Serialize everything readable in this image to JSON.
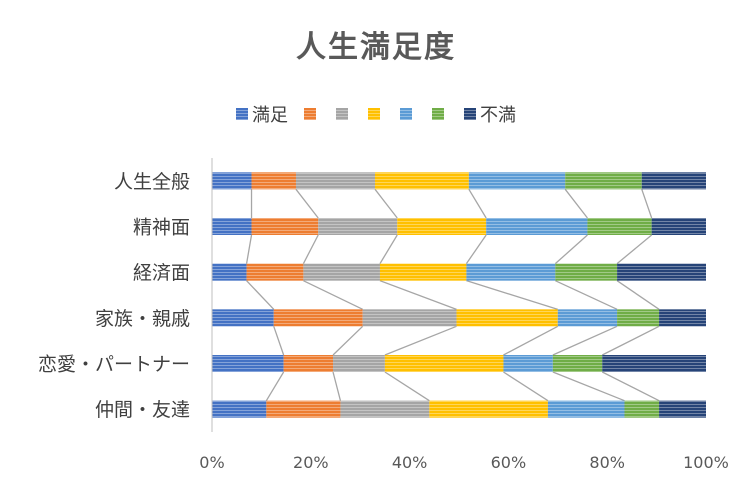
{
  "chart_data": {
    "type": "bar",
    "orientation": "horizontal",
    "stacked": "percent",
    "title": "人生満足度",
    "categories": [
      "人生全般",
      "精神面",
      "経済面",
      "家族・親戚",
      "恋愛・パートナー",
      "仲間・友達"
    ],
    "series": [
      {
        "name": "満足",
        "color": "#4472C4",
        "values": [
          8,
          8,
          7,
          12.5,
          14.5,
          11
        ]
      },
      {
        "name": "",
        "color": "#ED7D31",
        "values": [
          9,
          13.5,
          11.5,
          18,
          10,
          15
        ]
      },
      {
        "name": "",
        "color": "#A5A5A5",
        "values": [
          16,
          16,
          15.5,
          19,
          10.5,
          18
        ]
      },
      {
        "name": "",
        "color": "#FFC000",
        "values": [
          19,
          18,
          17.5,
          20.5,
          24,
          24
        ]
      },
      {
        "name": "",
        "color": "#5B9BD5",
        "values": [
          19.5,
          20.5,
          18,
          12,
          10,
          15.5
        ]
      },
      {
        "name": "",
        "color": "#70AD47",
        "values": [
          15.5,
          13,
          12.5,
          8.5,
          10,
          7
        ]
      },
      {
        "name": "不満",
        "color": "#264478",
        "values": [
          13,
          11,
          18,
          9.5,
          21,
          9.5
        ]
      }
    ],
    "xlim": [
      0,
      100
    ],
    "x_ticks": [
      "0%",
      "20%",
      "40%",
      "60%",
      "80%",
      "100%"
    ],
    "series_lines": true,
    "legend_position": "top"
  }
}
